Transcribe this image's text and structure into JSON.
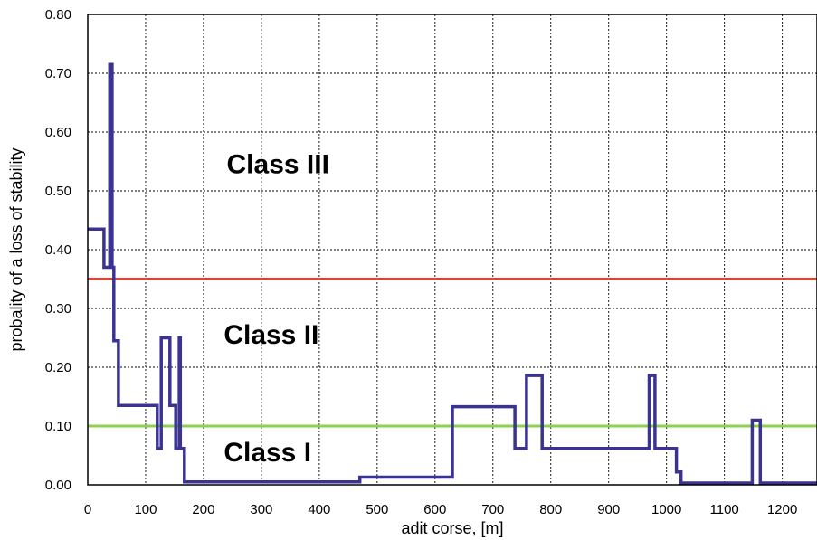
{
  "chart_data": {
    "type": "line",
    "xlabel": "adit corse, [m]",
    "ylabel": "probality of a loss of stability",
    "xlim": [
      0,
      1260
    ],
    "ylim": [
      0,
      0.8
    ],
    "x_ticks": [
      "0",
      "100",
      "200",
      "300",
      "400",
      "500",
      "600",
      "700",
      "800",
      "900",
      "1000",
      "1100",
      "1200"
    ],
    "y_ticks": [
      "0.00",
      "0.10",
      "0.20",
      "0.30",
      "0.40",
      "0.50",
      "0.60",
      "0.70",
      "0.80"
    ],
    "grid": true,
    "thresholds": [
      {
        "y": 0.35,
        "color": "#e8402a"
      },
      {
        "y": 0.1,
        "color": "#8fd14f"
      }
    ],
    "class_labels": [
      {
        "text": "Class III",
        "x": 240,
        "y": 0.53
      },
      {
        "text": "Class II",
        "x": 235,
        "y": 0.24
      },
      {
        "text": "Class I",
        "x": 235,
        "y": 0.04
      }
    ],
    "series": [
      {
        "color": "#3b3391",
        "points": [
          [
            0,
            0.435
          ],
          [
            28,
            0.435
          ],
          [
            28,
            0.37
          ],
          [
            38,
            0.37
          ],
          [
            38,
            0.715
          ],
          [
            42,
            0.715
          ],
          [
            42,
            0.37
          ],
          [
            45,
            0.37
          ],
          [
            45,
            0.245
          ],
          [
            53,
            0.245
          ],
          [
            53,
            0.135
          ],
          [
            120,
            0.135
          ],
          [
            120,
            0.062
          ],
          [
            127,
            0.062
          ],
          [
            127,
            0.25
          ],
          [
            142,
            0.25
          ],
          [
            142,
            0.135
          ],
          [
            152,
            0.135
          ],
          [
            152,
            0.062
          ],
          [
            158,
            0.062
          ],
          [
            158,
            0.25
          ],
          [
            160,
            0.25
          ],
          [
            160,
            0.062
          ],
          [
            167,
            0.062
          ],
          [
            167,
            0.005
          ],
          [
            470,
            0.005
          ],
          [
            470,
            0.013
          ],
          [
            630,
            0.013
          ],
          [
            630,
            0.133
          ],
          [
            738,
            0.133
          ],
          [
            738,
            0.062
          ],
          [
            758,
            0.062
          ],
          [
            758,
            0.186
          ],
          [
            785,
            0.186
          ],
          [
            785,
            0.062
          ],
          [
            970,
            0.062
          ],
          [
            970,
            0.186
          ],
          [
            980,
            0.186
          ],
          [
            980,
            0.062
          ],
          [
            1017,
            0.062
          ],
          [
            1017,
            0.022
          ],
          [
            1025,
            0.022
          ],
          [
            1025,
            0.003
          ],
          [
            1148,
            0.003
          ],
          [
            1148,
            0.11
          ],
          [
            1162,
            0.11
          ],
          [
            1162,
            0.003
          ],
          [
            1260,
            0.003
          ]
        ]
      }
    ]
  }
}
